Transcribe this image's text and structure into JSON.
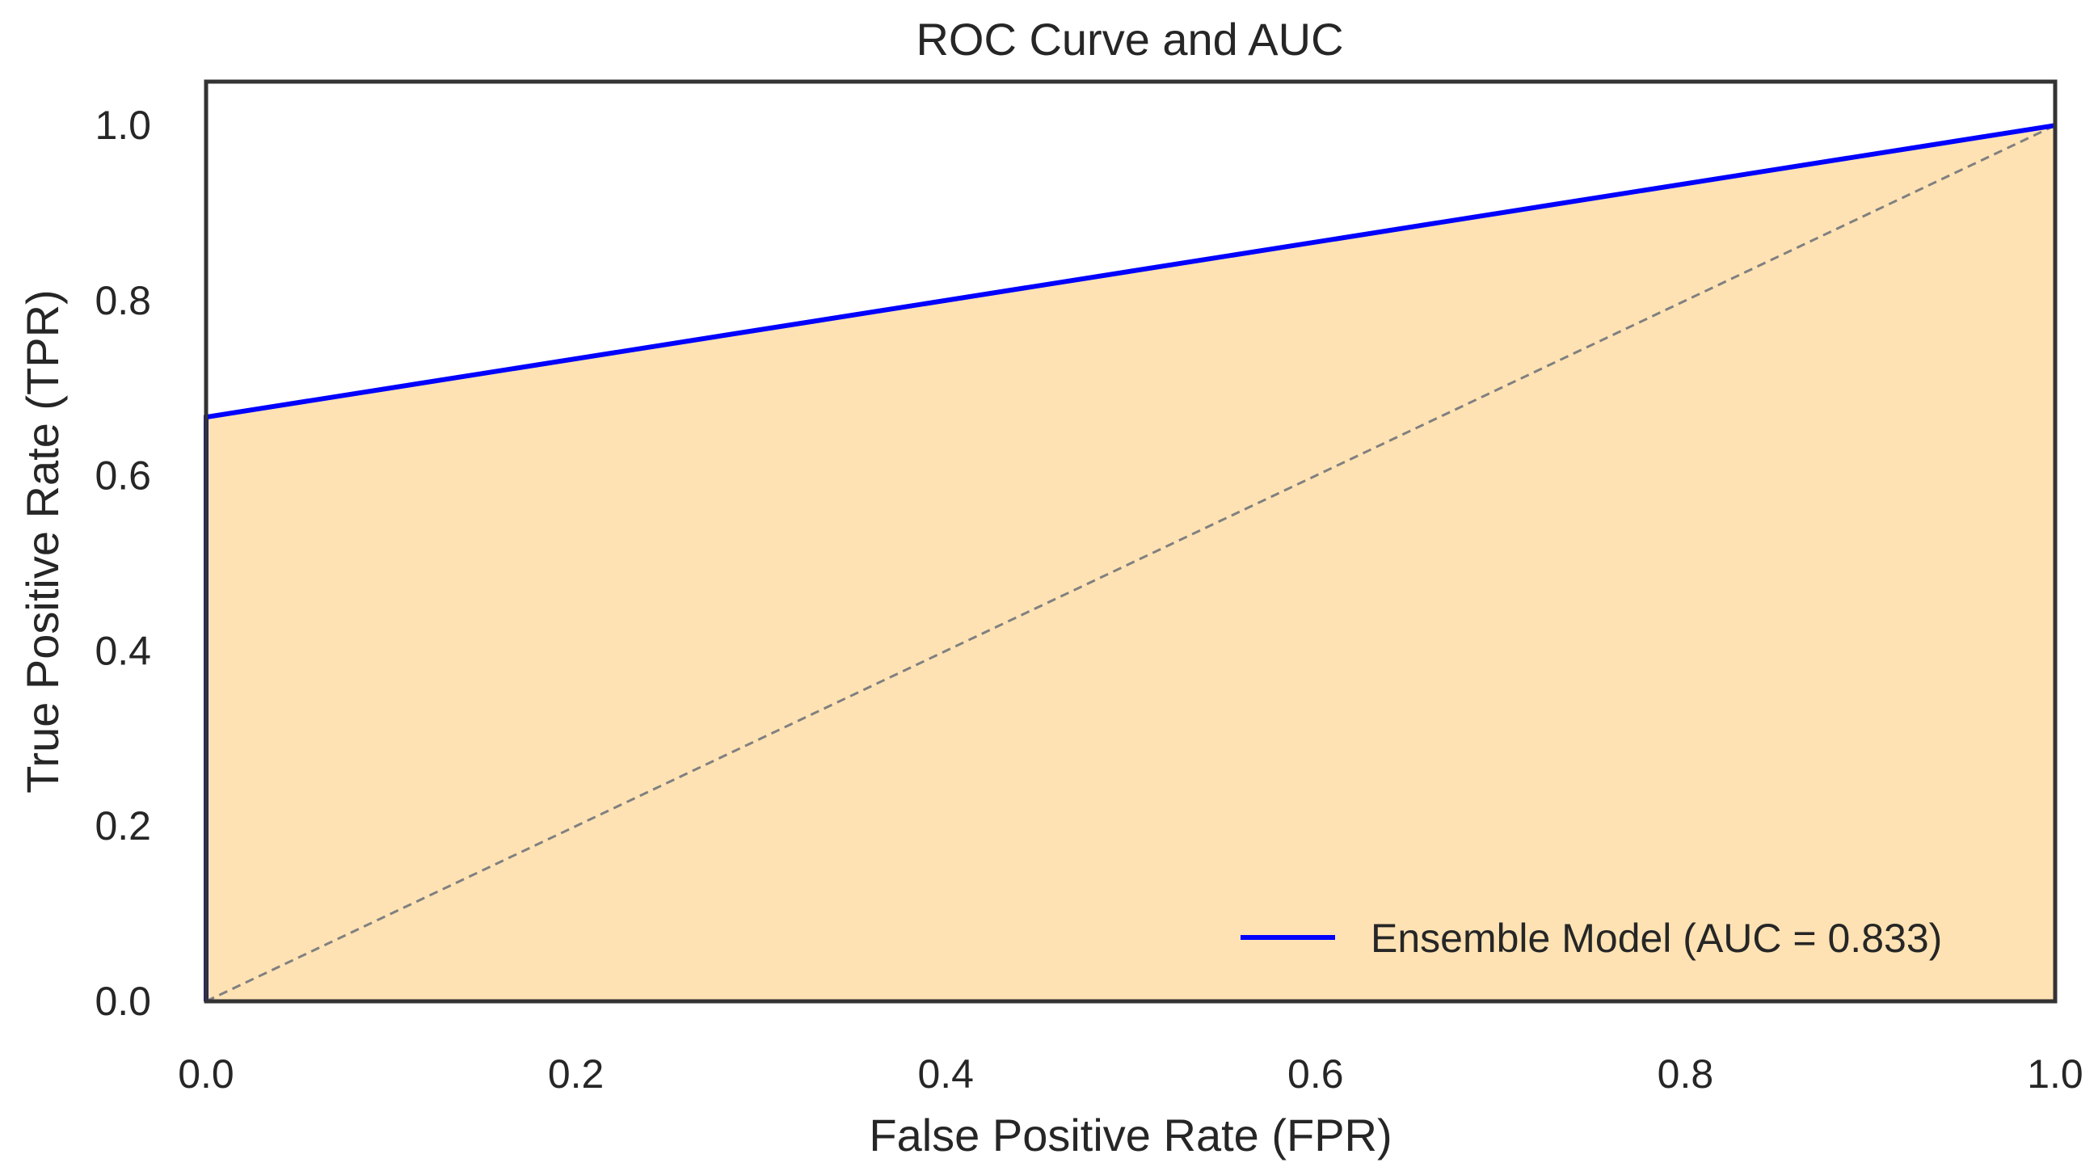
{
  "chart_data": {
    "type": "line",
    "title": "ROC Curve and AUC",
    "xlabel": "False Positive Rate (FPR)",
    "ylabel": "True Positive Rate (TPR)",
    "xlim": [
      0,
      1
    ],
    "ylim": [
      0,
      1.05
    ],
    "x_ticks": [
      0.0,
      0.2,
      0.4,
      0.6,
      0.8,
      1.0
    ],
    "x_tick_labels": [
      "0.0",
      "0.2",
      "0.4",
      "0.6",
      "0.8",
      "1.0"
    ],
    "y_ticks": [
      0.0,
      0.2,
      0.4,
      0.6,
      0.8,
      1.0
    ],
    "y_tick_labels": [
      "0.0",
      "0.2",
      "0.4",
      "0.6",
      "0.8",
      "1.0"
    ],
    "grid": false,
    "legend_position": "bottom-right",
    "series": [
      {
        "name": "Ensemble Model (AUC = 0.833)",
        "x": [
          0.0,
          0.0,
          1.0
        ],
        "y": [
          0.0,
          0.667,
          1.0
        ],
        "color": "#0000ff",
        "fill": "#ffe2b3"
      }
    ],
    "reference_line": {
      "x": [
        0.0,
        1.0
      ],
      "y": [
        0.0,
        1.0
      ],
      "color": "#808080",
      "style": "dashed"
    }
  }
}
